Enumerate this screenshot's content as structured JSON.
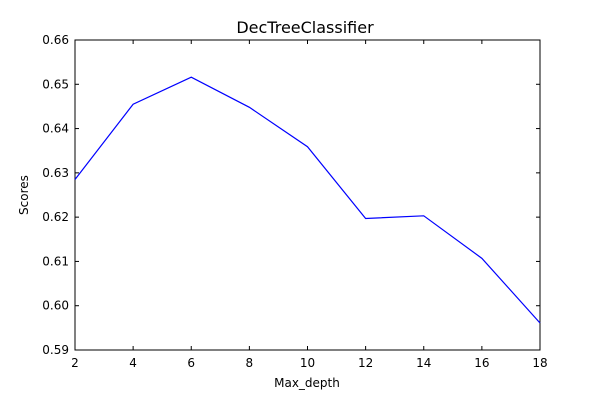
{
  "chart_data": {
    "type": "line",
    "title": "DecTreeClassifier",
    "xlabel": "Max_depth",
    "ylabel": "Scores",
    "xlim": [
      2,
      18
    ],
    "ylim": [
      0.59,
      0.66
    ],
    "x_ticks": [
      "2",
      "4",
      "6",
      "8",
      "10",
      "12",
      "14",
      "16",
      "18"
    ],
    "y_ticks": [
      "0.59",
      "0.60",
      "0.61",
      "0.62",
      "0.63",
      "0.64",
      "0.65",
      "0.66"
    ],
    "grid": false,
    "series": [
      {
        "color": "#0000ff",
        "x": [
          2,
          4,
          6,
          8,
          10,
          12,
          14,
          16,
          18
        ],
        "y": [
          0.6285,
          0.6455,
          0.6516,
          0.6448,
          0.6359,
          0.6197,
          0.6203,
          0.6107,
          0.5961
        ]
      }
    ]
  }
}
